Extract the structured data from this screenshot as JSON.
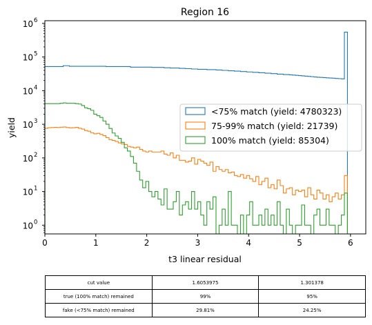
{
  "chart_data": {
    "type": "histogram-step",
    "title": "Region 16",
    "xlabel": "t3 linear residual",
    "ylabel": "yield",
    "x_scale": "linear",
    "y_scale": "log",
    "xlim": [
      0,
      6.3
    ],
    "ylim": [
      0.55,
      1200000
    ],
    "x_ticks": [
      0,
      1,
      2,
      3,
      4,
      5,
      6
    ],
    "x_tick_labels": [
      "0",
      "1",
      "2",
      "3",
      "4",
      "5",
      "6"
    ],
    "y_ticks": [
      1,
      10,
      100,
      1000,
      10000,
      100000,
      1000000
    ],
    "y_tick_labels": [
      "10",
      "10",
      "10",
      "10",
      "10",
      "10",
      "10"
    ],
    "y_tick_exponents": [
      "0",
      "1",
      "2",
      "3",
      "4",
      "5",
      "6"
    ],
    "legend_position": "center-right",
    "bin_edges": [
      0,
      0.06,
      0.12,
      0.18,
      0.24,
      0.3,
      0.36,
      0.42,
      0.48,
      0.54,
      0.6,
      0.66,
      0.72,
      0.78,
      0.84,
      0.9,
      0.96,
      1.02,
      1.08,
      1.14,
      1.2,
      1.26,
      1.32,
      1.38,
      1.44,
      1.5,
      1.56,
      1.62,
      1.68,
      1.74,
      1.8,
      1.86,
      1.92,
      1.98,
      2.04,
      2.1,
      2.16,
      2.22,
      2.28,
      2.34,
      2.4,
      2.46,
      2.52,
      2.58,
      2.64,
      2.7,
      2.76,
      2.82,
      2.88,
      2.94,
      3.0,
      3.06,
      3.12,
      3.18,
      3.24,
      3.3,
      3.36,
      3.42,
      3.48,
      3.54,
      3.6,
      3.66,
      3.72,
      3.78,
      3.84,
      3.9,
      3.96,
      4.02,
      4.08,
      4.14,
      4.2,
      4.26,
      4.32,
      4.38,
      4.44,
      4.5,
      4.56,
      4.62,
      4.68,
      4.74,
      4.8,
      4.86,
      4.92,
      4.98,
      5.04,
      5.1,
      5.16,
      5.22,
      5.28,
      5.34,
      5.4,
      5.46,
      5.52,
      5.58,
      5.64,
      5.7,
      5.76,
      5.82,
      5.88,
      5.94,
      6.0
    ],
    "series": [
      {
        "name": "<75% match (yield: 4780323)",
        "color": "#1f77b4",
        "values": [
          52000,
          52000,
          52000,
          52000,
          52000,
          52000,
          55000,
          55000,
          53000,
          53000,
          53000,
          53000,
          53000,
          53000,
          53000,
          53000,
          53000,
          53000,
          53000,
          53000,
          52000,
          52000,
          52000,
          52000,
          52000,
          52000,
          52000,
          52000,
          50000,
          50000,
          50000,
          50000,
          50000,
          50000,
          50000,
          49000,
          49000,
          49000,
          49000,
          48000,
          48000,
          47000,
          47000,
          47000,
          46000,
          46000,
          45000,
          45000,
          44000,
          44000,
          43000,
          43000,
          43000,
          42000,
          42000,
          42000,
          41000,
          41000,
          40000,
          40000,
          39000,
          39000,
          38000,
          38000,
          37000,
          37000,
          36000,
          36000,
          35000,
          35000,
          34000,
          34000,
          33000,
          33000,
          32000,
          32000,
          31000,
          31000,
          30000,
          30000,
          29500,
          29000,
          28500,
          28000,
          27500,
          27000,
          26500,
          26000,
          25500,
          25000,
          24700,
          24400,
          24000,
          23700,
          23400,
          23000,
          22700,
          22400,
          550000,
          0
        ]
      },
      {
        "name": "75-99% match (yield: 21739)",
        "color": "#ff7f0e",
        "values": [
          760,
          790,
          800,
          810,
          800,
          820,
          830,
          800,
          780,
          790,
          810,
          760,
          720,
          650,
          620,
          560,
          520,
          540,
          500,
          460,
          400,
          350,
          330,
          310,
          280,
          260,
          250,
          220,
          210,
          200,
          210,
          180,
          160,
          150,
          160,
          150,
          150,
          150,
          160,
          130,
          120,
          140,
          100,
          120,
          85,
          85,
          75,
          80,
          100,
          65,
          90,
          80,
          70,
          60,
          75,
          40,
          55,
          45,
          40,
          45,
          36,
          38,
          30,
          28,
          32,
          25,
          30,
          24,
          20,
          28,
          16,
          20,
          25,
          13,
          16,
          12,
          22,
          15,
          9,
          12,
          13,
          8,
          11,
          10,
          11,
          7,
          13,
          8,
          6,
          11,
          9,
          6,
          8,
          5,
          7,
          9,
          6,
          8,
          30,
          0
        ]
      },
      {
        "name": "100% match (yield: 85304)",
        "color": "#2ca02c",
        "values": [
          4100,
          4100,
          4100,
          4100,
          4100,
          4200,
          4300,
          4200,
          4200,
          4200,
          4100,
          4000,
          3600,
          3100,
          2900,
          2600,
          2000,
          1800,
          1600,
          1250,
          1000,
          750,
          550,
          450,
          380,
          290,
          200,
          160,
          110,
          70,
          40,
          22,
          13,
          20,
          10,
          7,
          10,
          6,
          4,
          12,
          3,
          3,
          5,
          10,
          2,
          4,
          5,
          3,
          10,
          3,
          5,
          2,
          1,
          5,
          3,
          7,
          0,
          1,
          3,
          1,
          10,
          1,
          1,
          0,
          2,
          0,
          2,
          5,
          1,
          1,
          2,
          1,
          3,
          1,
          2,
          1,
          5,
          1,
          0,
          3,
          1,
          0,
          1,
          1,
          4,
          1,
          1,
          0,
          2,
          3,
          1,
          1,
          3,
          1,
          1,
          0,
          1,
          2,
          9,
          0
        ]
      }
    ]
  },
  "table": {
    "rows": [
      {
        "label": "cut value",
        "c1": "1.6053975",
        "c2": "1.301378"
      },
      {
        "label": "true (100% match) remained",
        "c1": "99%",
        "c2": "95%"
      },
      {
        "label": "fake (<75% match) remained",
        "c1": "29.81%",
        "c2": "24.25%"
      }
    ]
  }
}
